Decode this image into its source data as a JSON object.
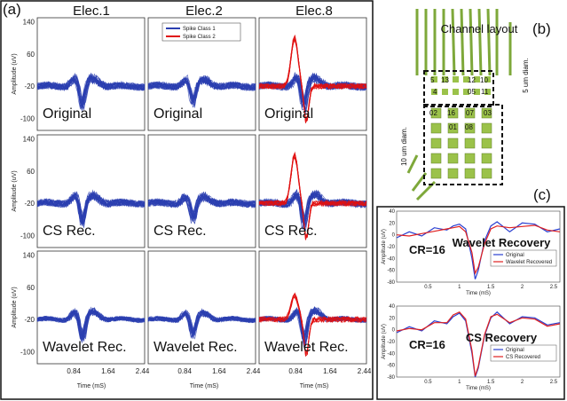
{
  "panel_labels": {
    "a": "(a)",
    "b": "(b)",
    "c": "(c)"
  },
  "spike_grid": {
    "column_titles": [
      "Elec.1",
      "Elec.2",
      "Elec.8"
    ],
    "row_captions": [
      "Original",
      "CS Rec.",
      "Wavelet Rec."
    ],
    "ylabel": "Amplitude (uV)",
    "xlabel": "Time (mS)",
    "y_ticks": [
      "140",
      "60",
      "-20",
      "-100"
    ],
    "x_ticks": [
      "0.84",
      "1.64",
      "2.44"
    ],
    "legend": [
      "Spike Class 1",
      "Spike Class 2"
    ],
    "colors": {
      "class1": "#2b3fb0",
      "class2": "#e01010"
    }
  },
  "chip": {
    "title": "Channel layout",
    "label_5um": "5 um diam.",
    "label_10um": "10 um diam.",
    "channels_top": [
      "5",
      "13",
      "12",
      "10",
      "4",
      "05",
      "11"
    ],
    "channels_bottom": [
      "02",
      "16",
      "07",
      "03",
      "01",
      "08"
    ]
  },
  "chart_data": [
    {
      "type": "line",
      "title": "Wavelet Recovery",
      "annotation": "CR=16",
      "xlabel": "Time (mS)",
      "ylabel": "Amplitude (uV)",
      "xlim": [
        0,
        2.6
      ],
      "ylim": [
        -80,
        40
      ],
      "x_ticks": [
        "0.5",
        "1",
        "1.5",
        "2",
        "2.5"
      ],
      "y_ticks": [
        "40",
        "20",
        "0",
        "-20",
        "-40",
        "-60",
        "-80"
      ],
      "x": [
        0,
        0.2,
        0.4,
        0.6,
        0.8,
        0.9,
        1.0,
        1.1,
        1.2,
        1.25,
        1.3,
        1.4,
        1.5,
        1.6,
        1.8,
        2.0,
        2.2,
        2.4,
        2.6
      ],
      "series": [
        {
          "name": "Original",
          "color": "#2a3fd0",
          "values": [
            -5,
            5,
            -2,
            12,
            8,
            15,
            18,
            10,
            -40,
            -75,
            -60,
            -10,
            15,
            22,
            5,
            20,
            18,
            5,
            10
          ]
        },
        {
          "name": "Wavelet Recovered",
          "color": "#e02020",
          "values": [
            0,
            -2,
            2,
            6,
            10,
            12,
            14,
            5,
            -30,
            -65,
            -55,
            -15,
            10,
            15,
            12,
            14,
            16,
            8,
            5
          ]
        }
      ]
    },
    {
      "type": "line",
      "title": "CS Recovery",
      "annotation": "CR=16",
      "xlabel": "Time (mS)",
      "ylabel": "Amplitude (uV)",
      "xlim": [
        0,
        2.6
      ],
      "ylim": [
        -80,
        40
      ],
      "x_ticks": [
        "0.5",
        "1",
        "1.5",
        "2",
        "2.5"
      ],
      "y_ticks": [
        "40",
        "20",
        "0",
        "-20",
        "-40",
        "-60",
        "-80"
      ],
      "x": [
        0,
        0.2,
        0.4,
        0.6,
        0.8,
        0.9,
        1.0,
        1.1,
        1.2,
        1.25,
        1.3,
        1.4,
        1.5,
        1.6,
        1.8,
        2.0,
        2.2,
        2.4,
        2.6
      ],
      "series": [
        {
          "name": "Original",
          "color": "#2a3fd0",
          "values": [
            -5,
            5,
            -2,
            15,
            10,
            22,
            28,
            15,
            -40,
            -80,
            -65,
            -10,
            20,
            30,
            10,
            22,
            20,
            8,
            12
          ]
        },
        {
          "name": "CS Recovered",
          "color": "#e02020",
          "values": [
            -2,
            2,
            0,
            12,
            12,
            25,
            30,
            18,
            -35,
            -78,
            -62,
            -8,
            22,
            26,
            12,
            20,
            18,
            6,
            10
          ]
        }
      ]
    }
  ]
}
